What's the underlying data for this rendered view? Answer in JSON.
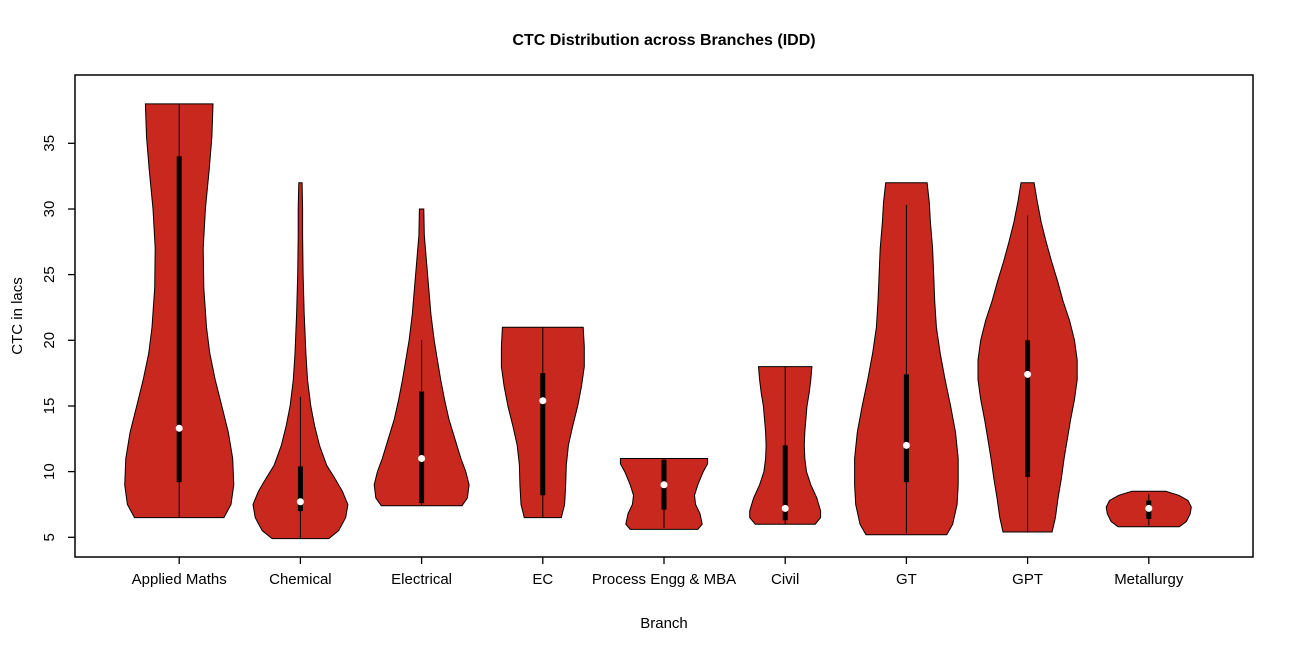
{
  "chart_data": {
    "type": "violin",
    "title": "CTC Distribution across Branches (IDD)",
    "xlabel": "Branch",
    "ylabel": "CTC in lacs",
    "categories": [
      "Applied Maths",
      "Chemical",
      "Electrical",
      "EC",
      "Process Engg & MBA",
      "Civil",
      "GT",
      "GPT",
      "Metallurgy"
    ],
    "y_ticks": [
      5,
      10,
      15,
      20,
      25,
      30,
      35
    ],
    "ylim": [
      3.5,
      40.2
    ],
    "xlim": [
      0.14,
      9.86
    ],
    "grid": false,
    "legend": false,
    "fill_color": "#C8281E",
    "stroke_color": "#000000",
    "violins": [
      {
        "name": "Applied Maths",
        "median": 13.3,
        "q1": 9.2,
        "q3": 34.0,
        "whisker_low": 6.5,
        "whisker_high": 38.0,
        "min": 6.5,
        "max": 38.0,
        "profile": [
          [
            6.5,
            0.82
          ],
          [
            7.5,
            0.95
          ],
          [
            9,
            1.0
          ],
          [
            11,
            0.98
          ],
          [
            13,
            0.9
          ],
          [
            15,
            0.78
          ],
          [
            17,
            0.66
          ],
          [
            19,
            0.56
          ],
          [
            21,
            0.5
          ],
          [
            24,
            0.45
          ],
          [
            27,
            0.44
          ],
          [
            30,
            0.48
          ],
          [
            33,
            0.55
          ],
          [
            35.5,
            0.6
          ],
          [
            38,
            0.62
          ]
        ]
      },
      {
        "name": "Chemical",
        "median": 7.7,
        "q1": 7.0,
        "q3": 10.4,
        "whisker_low": 4.9,
        "whisker_high": 15.7,
        "min": 4.9,
        "max": 32.0,
        "profile": [
          [
            4.9,
            0.52
          ],
          [
            5.5,
            0.7
          ],
          [
            6.5,
            0.83
          ],
          [
            7.5,
            0.87
          ],
          [
            8.5,
            0.77
          ],
          [
            9.5,
            0.63
          ],
          [
            10.5,
            0.48
          ],
          [
            12,
            0.35
          ],
          [
            13.5,
            0.26
          ],
          [
            15,
            0.19
          ],
          [
            17,
            0.13
          ],
          [
            19,
            0.1
          ],
          [
            22,
            0.07
          ],
          [
            25,
            0.05
          ],
          [
            28,
            0.04
          ],
          [
            30,
            0.04
          ],
          [
            32,
            0.03
          ]
        ]
      },
      {
        "name": "Electrical",
        "median": 11.0,
        "q1": 7.6,
        "q3": 16.1,
        "whisker_low": 7.4,
        "whisker_high": 20.0,
        "min": 7.4,
        "max": 30.0,
        "profile": [
          [
            7.4,
            0.74
          ],
          [
            8,
            0.84
          ],
          [
            9,
            0.87
          ],
          [
            10,
            0.81
          ],
          [
            11,
            0.72
          ],
          [
            12.5,
            0.61
          ],
          [
            14,
            0.5
          ],
          [
            15.5,
            0.42
          ],
          [
            17,
            0.35
          ],
          [
            18.5,
            0.29
          ],
          [
            20,
            0.23
          ],
          [
            22,
            0.17
          ],
          [
            24,
            0.13
          ],
          [
            26,
            0.09
          ],
          [
            28,
            0.05
          ],
          [
            30,
            0.04
          ]
        ]
      },
      {
        "name": "EC",
        "median": 15.4,
        "q1": 8.2,
        "q3": 17.5,
        "whisker_low": 6.5,
        "whisker_high": 21.0,
        "min": 6.5,
        "max": 21.0,
        "profile": [
          [
            6.5,
            0.34
          ],
          [
            7.5,
            0.4
          ],
          [
            9,
            0.42
          ],
          [
            10.5,
            0.43
          ],
          [
            12,
            0.47
          ],
          [
            13.5,
            0.55
          ],
          [
            15,
            0.64
          ],
          [
            16.5,
            0.71
          ],
          [
            18,
            0.76
          ],
          [
            19.5,
            0.76
          ],
          [
            21,
            0.74
          ]
        ]
      },
      {
        "name": "Process Engg & MBA",
        "median": 9.0,
        "q1": 7.1,
        "q3": 10.9,
        "whisker_low": 5.7,
        "whisker_high": 11.0,
        "min": 5.6,
        "max": 11.0,
        "profile": [
          [
            5.6,
            0.62
          ],
          [
            6,
            0.7
          ],
          [
            6.8,
            0.66
          ],
          [
            7.5,
            0.58
          ],
          [
            8.2,
            0.56
          ],
          [
            9,
            0.62
          ],
          [
            10,
            0.72
          ],
          [
            10.6,
            0.8
          ],
          [
            11,
            0.8
          ]
        ]
      },
      {
        "name": "Civil",
        "median": 7.2,
        "q1": 6.3,
        "q3": 12.0,
        "whisker_low": 6.0,
        "whisker_high": 18.0,
        "min": 6.0,
        "max": 18.0,
        "profile": [
          [
            6,
            0.55
          ],
          [
            6.5,
            0.65
          ],
          [
            7,
            0.65
          ],
          [
            8,
            0.58
          ],
          [
            9,
            0.47
          ],
          [
            10,
            0.39
          ],
          [
            11,
            0.36
          ],
          [
            12,
            0.35
          ],
          [
            13,
            0.36
          ],
          [
            14,
            0.38
          ],
          [
            15,
            0.4
          ],
          [
            16,
            0.44
          ],
          [
            17,
            0.47
          ],
          [
            18,
            0.49
          ]
        ]
      },
      {
        "name": "GT",
        "median": 12.0,
        "q1": 9.2,
        "q3": 17.4,
        "whisker_low": 5.3,
        "whisker_high": 30.3,
        "min": 5.2,
        "max": 32.0,
        "profile": [
          [
            5.2,
            0.74
          ],
          [
            6,
            0.85
          ],
          [
            7.5,
            0.93
          ],
          [
            9,
            0.95
          ],
          [
            11,
            0.95
          ],
          [
            13,
            0.9
          ],
          [
            15,
            0.81
          ],
          [
            17,
            0.71
          ],
          [
            19,
            0.62
          ],
          [
            21,
            0.55
          ],
          [
            23,
            0.52
          ],
          [
            25,
            0.5
          ],
          [
            27,
            0.48
          ],
          [
            29,
            0.44
          ],
          [
            30.5,
            0.42
          ],
          [
            32,
            0.38
          ]
        ]
      },
      {
        "name": "GPT",
        "median": 17.4,
        "q1": 9.6,
        "q3": 20.0,
        "whisker_low": 5.4,
        "whisker_high": 29.5,
        "min": 5.4,
        "max": 32.0,
        "profile": [
          [
            5.4,
            0.45
          ],
          [
            6.5,
            0.51
          ],
          [
            8,
            0.56
          ],
          [
            9.5,
            0.62
          ],
          [
            11,
            0.67
          ],
          [
            12.5,
            0.73
          ],
          [
            14,
            0.79
          ],
          [
            15.5,
            0.86
          ],
          [
            17,
            0.91
          ],
          [
            18.5,
            0.91
          ],
          [
            20,
            0.86
          ],
          [
            21.5,
            0.77
          ],
          [
            23,
            0.65
          ],
          [
            24.5,
            0.55
          ],
          [
            26,
            0.44
          ],
          [
            27.5,
            0.34
          ],
          [
            29,
            0.25
          ],
          [
            30.5,
            0.18
          ],
          [
            32,
            0.12
          ]
        ]
      },
      {
        "name": "Metallurgy",
        "median": 7.2,
        "q1": 6.4,
        "q3": 7.8,
        "whisker_low": 5.9,
        "whisker_high": 8.3,
        "min": 5.8,
        "max": 8.5,
        "profile": [
          [
            5.8,
            0.56
          ],
          [
            6.2,
            0.69
          ],
          [
            6.8,
            0.76
          ],
          [
            7.3,
            0.78
          ],
          [
            7.8,
            0.72
          ],
          [
            8.2,
            0.55
          ],
          [
            8.5,
            0.31
          ]
        ]
      }
    ]
  }
}
